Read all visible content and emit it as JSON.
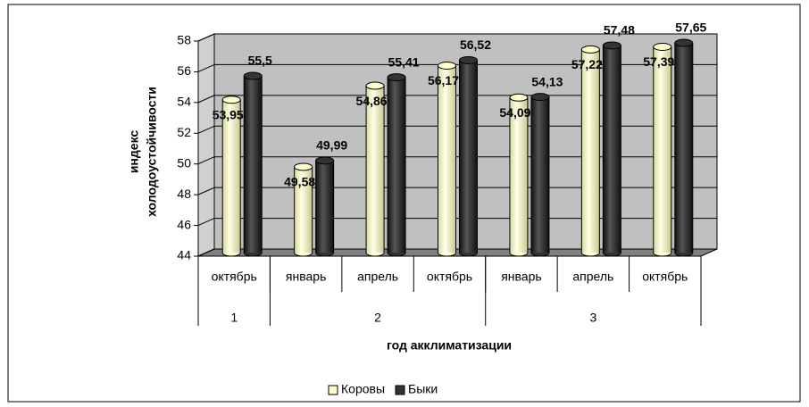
{
  "chart_data": {
    "type": "bar",
    "y_label": [
      "индекс",
      "холодоустойчивости"
    ],
    "x_label": "год акклиматизации",
    "categories": [
      "октябрь",
      "январь",
      "апрель",
      "октябрь",
      "январь",
      "апрель",
      "октябрь"
    ],
    "groups": [
      {
        "label": "1",
        "span": 1
      },
      {
        "label": "2",
        "span": 3
      },
      {
        "label": "3",
        "span": 3
      }
    ],
    "series": [
      {
        "name": "Коровы",
        "color": "#ffffcc",
        "values": [
          53.95,
          49.58,
          54.86,
          56.17,
          54.09,
          57.22,
          57.39
        ],
        "value_labels": [
          "53,95",
          "49,58",
          "54,86",
          "56,17",
          "54,09",
          "57,22",
          "57,39"
        ]
      },
      {
        "name": "Быки",
        "color": "#333333",
        "values": [
          55.5,
          49.99,
          55.41,
          56.52,
          54.13,
          57.48,
          57.65
        ],
        "value_labels": [
          "55,5",
          "49,99",
          "55,41",
          "56,52",
          "54,13",
          "57,48",
          "57,65"
        ]
      }
    ],
    "ylim": [
      44,
      58
    ],
    "yticks": [
      44,
      46,
      48,
      50,
      52,
      54,
      56,
      58
    ],
    "grid": true,
    "legend": "bottom"
  }
}
